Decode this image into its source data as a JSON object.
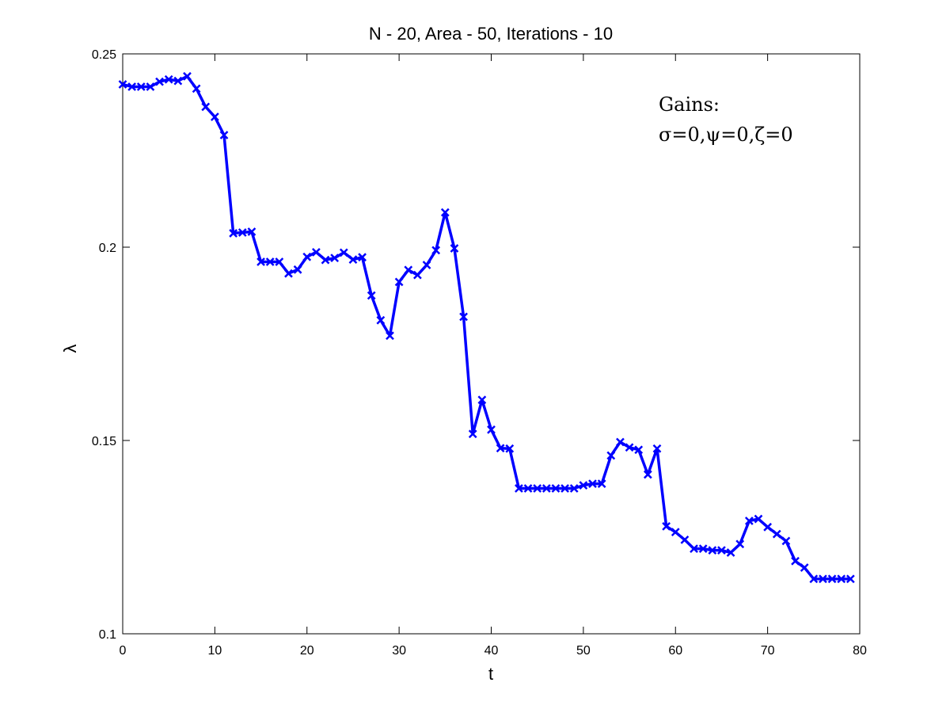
{
  "chart_data": {
    "type": "line",
    "title": "N - 20, Area - 50, Iterations - 10",
    "xlabel": "t",
    "ylabel": "λ",
    "xlim": [
      0,
      80
    ],
    "ylim": [
      0.1,
      0.25
    ],
    "xticks": [
      "0",
      "10",
      "20",
      "30",
      "40",
      "50",
      "60",
      "70",
      "80"
    ],
    "yticks": [
      "0.1",
      "0.15",
      "0.2",
      "0.25"
    ],
    "grid": false,
    "legend": "none",
    "annotations": [
      "Gains:",
      "σ=0,ψ=0,ζ=0"
    ],
    "series": [
      {
        "color": "#0000ff",
        "marker": "x",
        "x": [
          0,
          1,
          2,
          3,
          4,
          5,
          6,
          7,
          8,
          9,
          10,
          11,
          12,
          13,
          14,
          15,
          16,
          17,
          18,
          19,
          20,
          21,
          22,
          23,
          24,
          25,
          26,
          27,
          28,
          29,
          30,
          31,
          32,
          33,
          34,
          35,
          36,
          37,
          38,
          39,
          40,
          41,
          42,
          43,
          44,
          45,
          46,
          47,
          48,
          49,
          50,
          51,
          52,
          53,
          54,
          55,
          56,
          57,
          58,
          59,
          60,
          61,
          62,
          63,
          64,
          65,
          66,
          67,
          68,
          69,
          70,
          71,
          72,
          73,
          74,
          75,
          76,
          77,
          78,
          79
        ],
        "y": [
          0.2421,
          0.2415,
          0.2415,
          0.2415,
          0.2428,
          0.2434,
          0.243,
          0.2442,
          0.241,
          0.2363,
          0.2337,
          0.229,
          0.2036,
          0.2038,
          0.204,
          0.1962,
          0.1962,
          0.1962,
          0.1932,
          0.1942,
          0.1975,
          0.1987,
          0.1967,
          0.1972,
          0.1986,
          0.1968,
          0.1974,
          0.1875,
          0.1811,
          0.1771,
          0.191,
          0.1941,
          0.1928,
          0.1954,
          0.1992,
          0.209,
          0.1997,
          0.182,
          0.1517,
          0.1605,
          0.1528,
          0.148,
          0.1479,
          0.1376,
          0.1376,
          0.1376,
          0.1376,
          0.1376,
          0.1376,
          0.1376,
          0.1384,
          0.1388,
          0.1388,
          0.1461,
          0.1496,
          0.1482,
          0.1476,
          0.1412,
          0.1479,
          0.1278,
          0.1263,
          0.1243,
          0.122,
          0.122,
          0.1216,
          0.1216,
          0.121,
          0.1232,
          0.1292,
          0.1297,
          0.1276,
          0.1258,
          0.124,
          0.1188,
          0.1171,
          0.1142,
          0.1142,
          0.1142,
          0.1142,
          0.1142
        ]
      }
    ]
  }
}
